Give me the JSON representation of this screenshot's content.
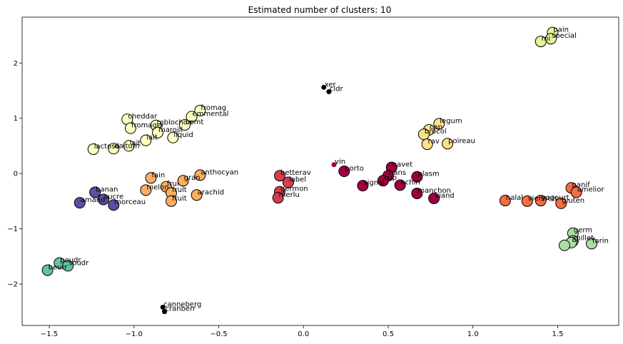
{
  "chart_data": {
    "type": "scatter",
    "title": "Estimated number of clusters: 10",
    "xlabel": "",
    "ylabel": "",
    "xlim": [
      -1.66,
      1.86
    ],
    "ylim": [
      -2.75,
      2.83
    ],
    "xticks": [
      -1.5,
      -1.0,
      -0.5,
      0.0,
      0.5,
      1.0,
      1.5
    ],
    "xtick_labels": [
      "−1.5",
      "−1.0",
      "−0.5",
      "0.0",
      "0.5",
      "1.0",
      "1.5"
    ],
    "yticks": [
      -2,
      -1,
      0,
      1,
      2
    ],
    "ytick_labels": [
      "−2",
      "−1",
      "0",
      "1",
      "2"
    ],
    "grid": false,
    "series": [
      {
        "color": "#5e4fa2",
        "core": true,
        "points": [
          {
            "x": -1.23,
            "y": -0.34,
            "label": "banan"
          },
          {
            "x": -1.18,
            "y": -0.47,
            "label": "sucre"
          },
          {
            "x": -1.32,
            "y": -0.53,
            "label": "amand"
          },
          {
            "x": -1.12,
            "y": -0.57,
            "label": "morceau"
          }
        ]
      },
      {
        "color": "#66c2a5",
        "core": true,
        "points": [
          {
            "x": -1.44,
            "y": -1.62,
            "label": "poudr"
          },
          {
            "x": -1.39,
            "y": -1.67,
            "label": "soudr"
          },
          {
            "x": -1.51,
            "y": -1.75,
            "label": "beurr"
          }
        ]
      },
      {
        "color": "#abdda4",
        "core": true,
        "points": [
          {
            "x": 1.59,
            "y": -1.08,
            "label": "germ"
          },
          {
            "x": 1.59,
            "y": -1.22,
            "label": "millet"
          },
          {
            "x": 1.58,
            "y": -1.25,
            "label": "bl"
          },
          {
            "x": 1.54,
            "y": -1.3,
            "label": ""
          },
          {
            "x": 1.7,
            "y": -1.27,
            "label": "farin"
          }
        ]
      },
      {
        "color": "#e6f598",
        "core": true,
        "points": [
          {
            "x": 1.47,
            "y": 2.55,
            "label": "pain"
          },
          {
            "x": 1.46,
            "y": 2.44,
            "label": "special"
          },
          {
            "x": 1.4,
            "y": 2.39,
            "label": "mi"
          }
        ]
      },
      {
        "color": "#fee08b",
        "core": true,
        "points": [
          {
            "x": 0.8,
            "y": 0.9,
            "label": "legum"
          },
          {
            "x": 0.74,
            "y": 0.79,
            "label": "cap"
          },
          {
            "x": 0.71,
            "y": 0.71,
            "label": "brocol"
          },
          {
            "x": 0.73,
            "y": 0.53,
            "label": "rav"
          },
          {
            "x": 0.85,
            "y": 0.54,
            "label": "poireau"
          }
        ]
      },
      {
        "color": "#ffffbf",
        "core": true,
        "points": [
          {
            "x": -0.61,
            "y": 1.14,
            "label": "fromag"
          },
          {
            "x": -0.66,
            "y": 1.03,
            "label": "emmental"
          },
          {
            "x": -1.04,
            "y": 0.98,
            "label": "cheddar"
          },
          {
            "x": -0.7,
            "y": 0.88,
            "label": "comt"
          },
          {
            "x": -0.87,
            "y": 0.87,
            "label": "reblochon"
          },
          {
            "x": -1.02,
            "y": 0.82,
            "label": "fromager"
          },
          {
            "x": -0.86,
            "y": 0.74,
            "label": "marojll"
          },
          {
            "x": -0.77,
            "y": 0.65,
            "label": "liquid"
          },
          {
            "x": -0.93,
            "y": 0.6,
            "label": "lait"
          },
          {
            "x": -1.03,
            "y": 0.5,
            "label": "lait"
          },
          {
            "x": -1.12,
            "y": 0.45,
            "label": "daitum"
          },
          {
            "x": -1.24,
            "y": 0.44,
            "label": "lactose"
          }
        ]
      },
      {
        "color": "#fdae61",
        "core": true,
        "points": [
          {
            "x": -0.61,
            "y": -0.03,
            "label": "anthocyan"
          },
          {
            "x": -0.9,
            "y": -0.08,
            "label": "fain"
          },
          {
            "x": -0.71,
            "y": -0.13,
            "label": "gran"
          },
          {
            "x": -0.81,
            "y": -0.24,
            "label": "frui"
          },
          {
            "x": -0.78,
            "y": -0.35,
            "label": "frult"
          },
          {
            "x": -0.93,
            "y": -0.3,
            "label": "melon"
          },
          {
            "x": -0.63,
            "y": -0.39,
            "label": "arachid"
          },
          {
            "x": -0.78,
            "y": -0.5,
            "label": "fruit"
          }
        ]
      },
      {
        "color": "#f46d43",
        "core": true,
        "points": [
          {
            "x": 1.58,
            "y": -0.26,
            "label": "panif"
          },
          {
            "x": 1.61,
            "y": -0.34,
            "label": "amelior"
          },
          {
            "x": 1.19,
            "y": -0.49,
            "label": "halal"
          },
          {
            "x": 1.32,
            "y": -0.5,
            "label": "viennois"
          },
          {
            "x": 1.4,
            "y": -0.49,
            "label": "yogourt"
          },
          {
            "x": 1.52,
            "y": -0.54,
            "label": "gluten"
          }
        ]
      },
      {
        "color": "#d53e4f",
        "core": true,
        "points": [
          {
            "x": -0.14,
            "y": -0.04,
            "label": "betterav"
          },
          {
            "x": -0.09,
            "y": -0.16,
            "label": "label"
          },
          {
            "x": -0.14,
            "y": -0.33,
            "label": "germon"
          },
          {
            "x": -0.15,
            "y": -0.44,
            "label": "merlu"
          }
        ]
      },
      {
        "color": "#9e0142",
        "core": true,
        "points": [
          {
            "x": 0.52,
            "y": 0.11,
            "label": "navet"
          },
          {
            "x": 0.24,
            "y": 0.04,
            "label": "porto"
          },
          {
            "x": 0.5,
            "y": -0.04,
            "label": "hans"
          },
          {
            "x": 0.67,
            "y": -0.06,
            "label": "plasm"
          },
          {
            "x": 0.47,
            "y": -0.13,
            "label": "cup"
          },
          {
            "x": 0.57,
            "y": -0.21,
            "label": "ochin"
          },
          {
            "x": 0.35,
            "y": -0.22,
            "label": "signal"
          },
          {
            "x": 0.67,
            "y": -0.36,
            "label": "manchon"
          },
          {
            "x": 0.77,
            "y": -0.45,
            "label": "viand"
          }
        ]
      },
      {
        "color": "#9e0142",
        "core": false,
        "points": [
          {
            "x": 0.18,
            "y": 0.16,
            "label": "vin"
          }
        ]
      },
      {
        "color": "#000000",
        "core": false,
        "points": [
          {
            "x": 0.12,
            "y": 1.56,
            "label": "xer"
          },
          {
            "x": 0.15,
            "y": 1.48,
            "label": "cidr"
          },
          {
            "x": -0.83,
            "y": -2.42,
            "label": "canneberg"
          },
          {
            "x": -0.82,
            "y": -2.5,
            "label": "cranberr"
          }
        ]
      }
    ]
  }
}
